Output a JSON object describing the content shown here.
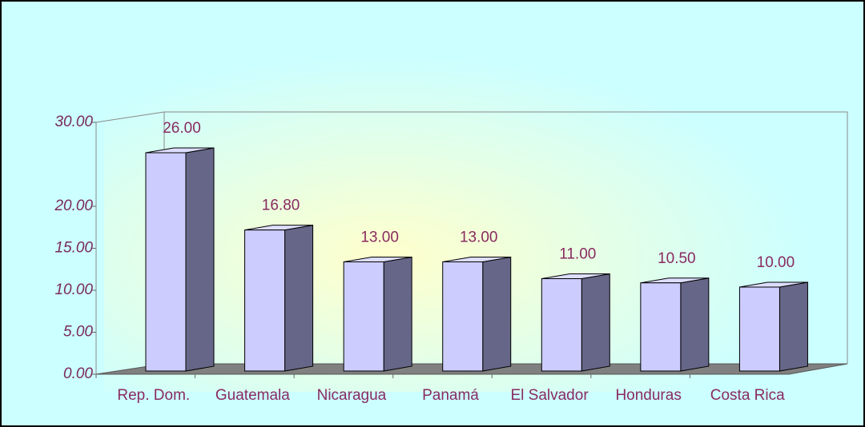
{
  "chart_data": {
    "type": "bar3d",
    "categories": [
      "Rep. Dom.",
      "Guatemala",
      "Nicaragua",
      "Panamá",
      "El Salvador",
      "Honduras",
      "Costa Rica"
    ],
    "values": [
      26,
      16.8,
      13,
      13,
      11,
      10.5,
      10
    ],
    "value_labels": [
      "26.00",
      "16.80",
      "13.00",
      "13.00",
      "11.00",
      "10.50",
      "10.00"
    ],
    "color": "#ccccff",
    "ylim": [
      0,
      30
    ],
    "yticks": [
      {
        "value": 0,
        "label": "0.00"
      },
      {
        "value": 5,
        "label": "5.00"
      },
      {
        "value": 10,
        "label": "10.00"
      },
      {
        "value": 15,
        "label": "15.00"
      },
      {
        "value": 20,
        "label": "20.00"
      },
      {
        "value": 30,
        "label": "30.00"
      }
    ]
  }
}
